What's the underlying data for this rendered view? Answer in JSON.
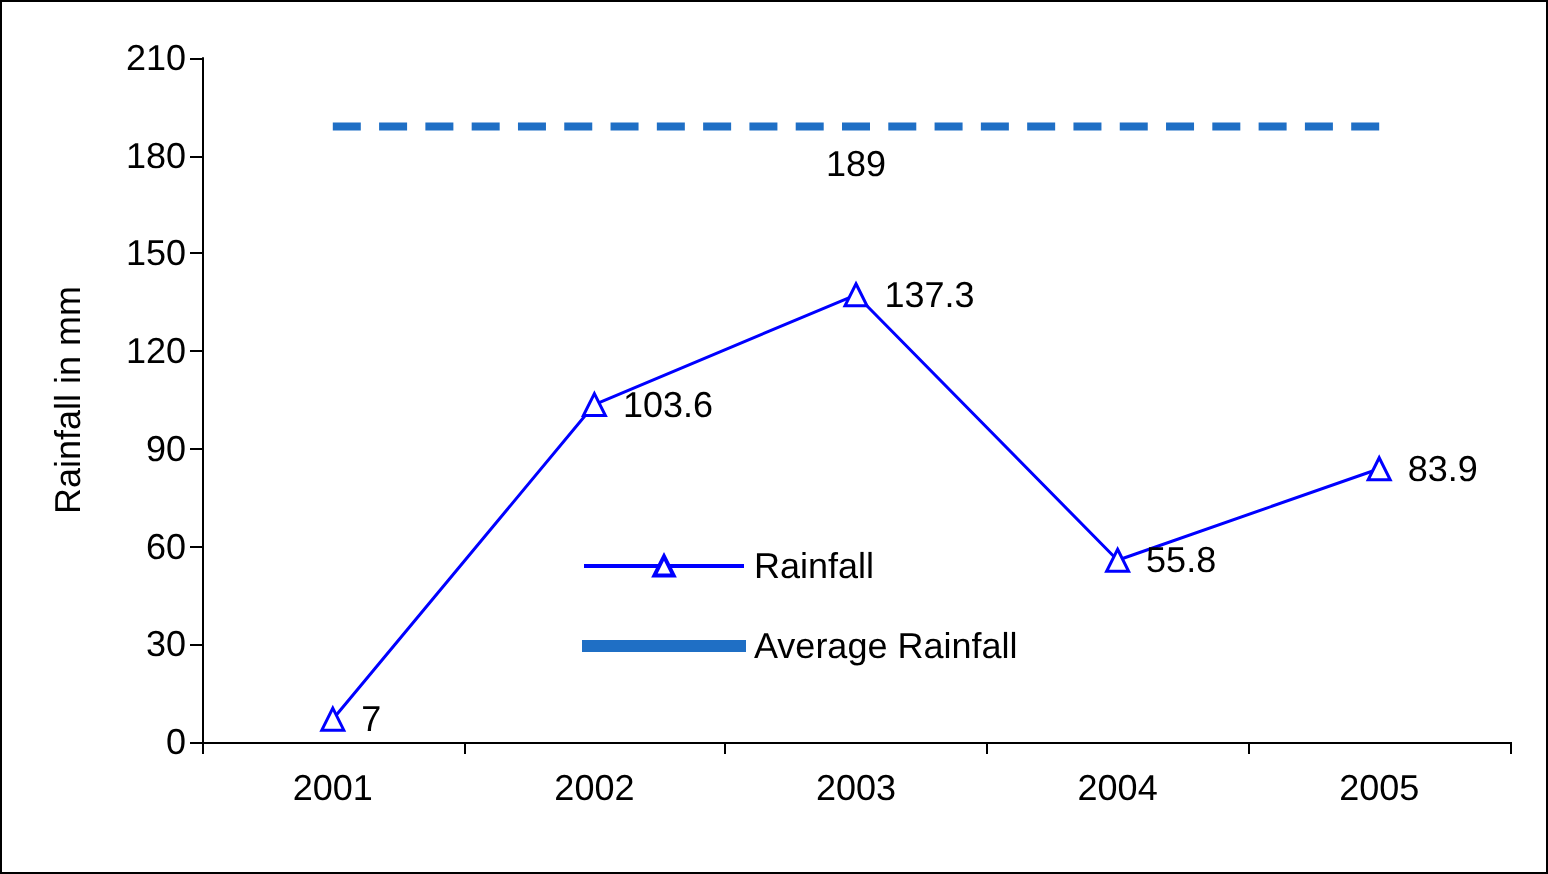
{
  "chart_data": {
    "type": "line",
    "ylabel": "Rainfall in mm",
    "categories": [
      "2001",
      "2002",
      "2003",
      "2004",
      "2005"
    ],
    "series": [
      {
        "name": "Rainfall",
        "color": "#0000ff",
        "values": [
          7,
          103.6,
          137.3,
          55.8,
          83.9
        ],
        "value_labels": [
          "7",
          "103.6",
          "137.3",
          "55.8",
          "83.9"
        ]
      },
      {
        "name": "Average Rainfall",
        "color": "#1f6fc5",
        "values": [
          189,
          189,
          189,
          189,
          189
        ],
        "value_labels": [
          null,
          null,
          "189",
          null,
          null
        ],
        "line_style": "dashed",
        "marker": "none"
      }
    ],
    "ylim": [
      0,
      210
    ],
    "yticks": [
      0,
      30,
      60,
      90,
      120,
      150,
      180,
      210
    ],
    "grid": false,
    "legend": "bottom",
    "marker": "triangle",
    "line_style": "solid"
  }
}
